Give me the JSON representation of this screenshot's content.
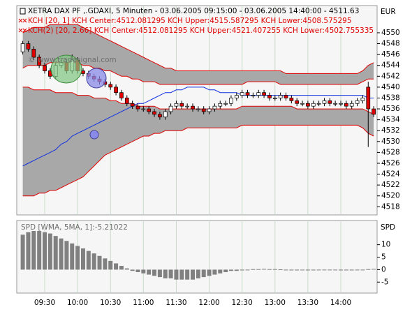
{
  "chart_data": [
    {
      "type": "candlestick",
      "title": "XETRA DAX PF ,.GDAXI, 5 Minuten - 03.06.2005 09:15:00 - 03.06.2005 14:40:00 - 4511.63",
      "unit": "EUR",
      "watermark": "© www.tradesignal.com",
      "categories": [
        null,
        null,
        null,
        null,
        "09:30",
        null,
        null,
        null,
        null,
        null,
        "10:00",
        null,
        null,
        null,
        null,
        null,
        "10:30",
        null,
        null,
        null,
        null,
        null,
        "11:00",
        null,
        null,
        null,
        null,
        null,
        "11:30",
        null,
        null,
        null,
        null,
        null,
        "12:00",
        null,
        null,
        null,
        null,
        null,
        "12:30",
        null,
        null,
        null,
        null,
        null,
        "13:00",
        null,
        null,
        null,
        null,
        null,
        "13:30",
        null,
        null,
        null,
        null,
        null,
        "14:00",
        null,
        null,
        null,
        null,
        null,
        null
      ],
      "open": [
        4546.5,
        4548,
        4547,
        4545.5,
        4544,
        4543,
        4542,
        4544,
        4544.5,
        4543,
        4545,
        4543,
        4542.5,
        4542,
        4541.5,
        4541,
        4540.5,
        4540,
        4539,
        4538,
        4537,
        4536.5,
        4536,
        4536,
        4535.5,
        4535,
        4534.5,
        4535.5,
        4536.5,
        4537,
        4536.5,
        4536.5,
        4536,
        4536,
        4535.5,
        4536,
        4536.5,
        4537,
        4537,
        4538,
        4538.5,
        4539,
        4538.5,
        4538.5,
        4539,
        4538.5,
        4538,
        4538,
        4538.5,
        4538,
        4537.5,
        4537,
        4537,
        4536.5,
        4537,
        4537,
        4537.5,
        4537,
        4537,
        4537,
        4536.5,
        4537,
        4537.5,
        4540,
        4536
      ],
      "high": [
        4548.5,
        4548.5,
        4547.5,
        4546,
        4544.5,
        4543.5,
        4544.5,
        4545,
        4545,
        4546,
        4545.5,
        4543.5,
        4543,
        4542.5,
        4542,
        4541.5,
        4541,
        4540.5,
        4539.5,
        4538.5,
        4537.5,
        4537,
        4536.5,
        4536.5,
        4536,
        4535.5,
        4536,
        4537,
        4537.5,
        4537.5,
        4537,
        4537,
        4536.5,
        4536.5,
        4536.5,
        4537,
        4537.5,
        4537.5,
        4538.5,
        4539,
        4539.5,
        4539.5,
        4539,
        4539.5,
        4539.5,
        4539,
        4538.5,
        4539,
        4539,
        4538.5,
        4538,
        4537.5,
        4537.5,
        4537.5,
        4537.5,
        4538,
        4538,
        4537.5,
        4537.5,
        4537.5,
        4537.5,
        4538,
        4538.5,
        4541,
        4536.5
      ],
      "low": [
        4546,
        4546.5,
        4545,
        4543.5,
        4542.5,
        4541.5,
        4541.5,
        4543.5,
        4542.5,
        4542.5,
        4542.5,
        4542,
        4541.5,
        4541,
        4540.5,
        4540,
        4539.5,
        4538.5,
        4537.5,
        4536.5,
        4536,
        4535.5,
        4535.5,
        4535,
        4534.5,
        4534,
        4534,
        4535,
        4536,
        4536,
        4536,
        4535.5,
        4535.5,
        4535,
        4535,
        4535.5,
        4536,
        4536.5,
        4536.5,
        4537.5,
        4538,
        4538,
        4538,
        4538,
        4538,
        4537.5,
        4537.5,
        4537.5,
        4537.5,
        4537,
        4536.5,
        4536.5,
        4536,
        4536,
        4536.5,
        4536.5,
        4536.5,
        4536.5,
        4536.5,
        4536,
        4536,
        4536.5,
        4537,
        4529,
        4534.5
      ],
      "close": [
        4548,
        4547,
        4545.5,
        4544,
        4543,
        4542,
        4544,
        4544.5,
        4543,
        4545,
        4543,
        4542.5,
        4542,
        4541.5,
        4541,
        4540.5,
        4540,
        4539,
        4538,
        4537,
        4536.5,
        4536,
        4536,
        4535.5,
        4535,
        4534.5,
        4535.5,
        4536.5,
        4537,
        4536.5,
        4536.5,
        4536,
        4536,
        4535.5,
        4536,
        4536.5,
        4537,
        4537,
        4538,
        4538.5,
        4539,
        4538.5,
        4538.5,
        4539,
        4538.5,
        4538,
        4538,
        4538.5,
        4538,
        4537.5,
        4537,
        4537,
        4536.5,
        4537,
        4537,
        4537.5,
        4537,
        4537,
        4537,
        4536.5,
        4537,
        4537.5,
        4538,
        4536,
        4535
      ],
      "up_color": "#ffffff",
      "down_color": "#e00000",
      "center": {
        "color": "#1030e0",
        "values": [
          4525.5,
          4526,
          4526.5,
          4527,
          4527.5,
          4528,
          4528.5,
          4529.5,
          4530,
          4531,
          4531.5,
          4532,
          4532.5,
          4533,
          4533.5,
          4534,
          4534.5,
          4535,
          4535.5,
          4536,
          4536.5,
          4537,
          4537,
          4537.5,
          4538,
          4538.5,
          4539,
          4539,
          4539.5,
          4539.5,
          4540,
          4540,
          4540,
          4540,
          4539.5,
          4539.5,
          4539,
          4539,
          4539,
          4539,
          4538.5,
          4538.5,
          4538.5,
          4538.5,
          4538.5,
          4538.5,
          4538.5,
          4538.5,
          4538.5,
          4538.5,
          4538.5,
          4538.5,
          4538.5,
          4538.5,
          4538.5,
          4538.5,
          4538.5,
          4538.5,
          4538.5,
          4538.5,
          4538.5,
          4538.5,
          4538.5,
          4538,
          4538
        ]
      },
      "channels": [
        {
          "legend": "KCH [20, 1] KCH Center:4512.081295 KCH Upper:4515.587295 KCH Lower:4508.575295",
          "color": "#e00000",
          "upper": [
            4543.5,
            4544,
            4544,
            4544,
            4544,
            4544.5,
            4544.5,
            4544.5,
            4544.5,
            4544.5,
            4544.5,
            4544,
            4544,
            4543.5,
            4543.5,
            4543,
            4543,
            4542.5,
            4542,
            4542,
            4541.5,
            4541.5,
            4541,
            4541,
            4541,
            4540.5,
            4540.5,
            4540.5,
            4540.5,
            4540.5,
            4540.5,
            4540.5,
            4540.5,
            4540.5,
            4540.5,
            4540.5,
            4540.5,
            4540.5,
            4540.5,
            4540.5,
            4540.5,
            4541,
            4541,
            4541,
            4541,
            4541,
            4541,
            4540.5,
            4540.5,
            4540.5,
            4540.5,
            4540.5,
            4540.5,
            4540.5,
            4540.5,
            4540.5,
            4540.5,
            4540.5,
            4540.5,
            4540.5,
            4540.5,
            4540.5,
            4541,
            4541.5,
            4541.5
          ],
          "lower": [
            4540,
            4540,
            4539.5,
            4539.5,
            4539.5,
            4539.5,
            4539,
            4539,
            4539,
            4539,
            4538.5,
            4538.5,
            4538.5,
            4538,
            4538,
            4538,
            4537.5,
            4537.5,
            4537,
            4537,
            4537,
            4536.5,
            4536.5,
            4536.5,
            4536.5,
            4536,
            4536,
            4536,
            4536,
            4536,
            4536,
            4536,
            4536,
            4536,
            4536,
            4536,
            4536,
            4536,
            4536,
            4536,
            4536.5,
            4536.5,
            4536.5,
            4536.5,
            4536.5,
            4536.5,
            4536.5,
            4536.5,
            4536.5,
            4536.5,
            4536,
            4536,
            4536,
            4536,
            4536,
            4536,
            4536,
            4536,
            4536,
            4536,
            4536,
            4536,
            4536,
            4535.5,
            4535
          ]
        },
        {
          "legend": "KCH(2) [20, 2.66] KCH Center:4512.081295 KCH Upper:4521.407255 KCH Lower:4502.755335",
          "color": "#e00000",
          "upper": [
            4550,
            4550.5,
            4551,
            4551,
            4551,
            4551.5,
            4551.5,
            4551.5,
            4551.5,
            4551.5,
            4551.5,
            4551,
            4550.5,
            4550,
            4549.5,
            4549,
            4548.5,
            4548,
            4547.5,
            4547,
            4546.5,
            4546,
            4545.5,
            4545,
            4544.5,
            4544,
            4543.5,
            4543.5,
            4543,
            4543,
            4543,
            4543,
            4543,
            4543,
            4543,
            4543,
            4543,
            4543,
            4543,
            4543,
            4543,
            4543,
            4543,
            4543,
            4543,
            4543,
            4543,
            4543,
            4542.5,
            4542.5,
            4542.5,
            4542.5,
            4542.5,
            4542.5,
            4542.5,
            4542.5,
            4542.5,
            4542.5,
            4542.5,
            4542.5,
            4542.5,
            4542.5,
            4543,
            4544,
            4544.5
          ],
          "lower": [
            4520,
            4520,
            4520,
            4520.5,
            4520.5,
            4521,
            4521,
            4521.5,
            4522,
            4522.5,
            4523,
            4523.5,
            4524.5,
            4525.5,
            4526.5,
            4527.5,
            4528,
            4528.5,
            4529,
            4529.5,
            4530,
            4530.5,
            4531,
            4531,
            4531.5,
            4531.5,
            4532,
            4532,
            4532,
            4532,
            4532.5,
            4532.5,
            4532.5,
            4532.5,
            4532.5,
            4532.5,
            4532.5,
            4532.5,
            4532.5,
            4532.5,
            4533,
            4533,
            4533,
            4533,
            4533,
            4533,
            4533,
            4533,
            4533,
            4533,
            4533,
            4533,
            4533,
            4533,
            4533,
            4533,
            4533,
            4533,
            4533,
            4533,
            4533,
            4533,
            4532.5,
            4531.5,
            4531
          ]
        }
      ],
      "band_color": "#a8a8a8",
      "ylim": [
        4516.5,
        4555
      ],
      "yticks": [
        4518,
        4520,
        4522,
        4524,
        4526,
        4528,
        4530,
        4532,
        4534,
        4536,
        4538,
        4540,
        4542,
        4544,
        4546,
        4548,
        4550
      ],
      "grid": true
    },
    {
      "type": "bar",
      "legend": "SPD [WMA, 5MA, 1]:-5.21022",
      "axis_title": "SPD",
      "color": "#808080",
      "values": [
        14,
        15,
        15.5,
        15.5,
        15,
        14.5,
        13.5,
        12.5,
        11.5,
        10.5,
        9.5,
        8.5,
        7.5,
        6.5,
        5.5,
        4.5,
        3.5,
        2.5,
        1.5,
        0.5,
        -0.5,
        -1,
        -1.5,
        -2,
        -2.5,
        -3,
        -3.5,
        -3.5,
        -4,
        -4,
        -4,
        -4,
        -3.5,
        -3,
        -2.5,
        -2,
        -1.5,
        -1,
        -0.5,
        -0.5,
        -0.3,
        -0.2,
        0.2,
        0.2,
        0.3,
        0.2,
        0.2,
        0.1,
        -0.2,
        -0.3,
        -0.3,
        -0.2,
        -0.3,
        -0.3,
        -0.2,
        -0.1,
        -0.2,
        -0.2,
        -0.3,
        -0.3,
        -0.3,
        -0.2,
        0,
        0.2,
        0.3
      ],
      "ylim": [
        -9.4,
        19.7
      ],
      "yticks": [
        -5,
        0,
        5,
        10
      ]
    }
  ]
}
